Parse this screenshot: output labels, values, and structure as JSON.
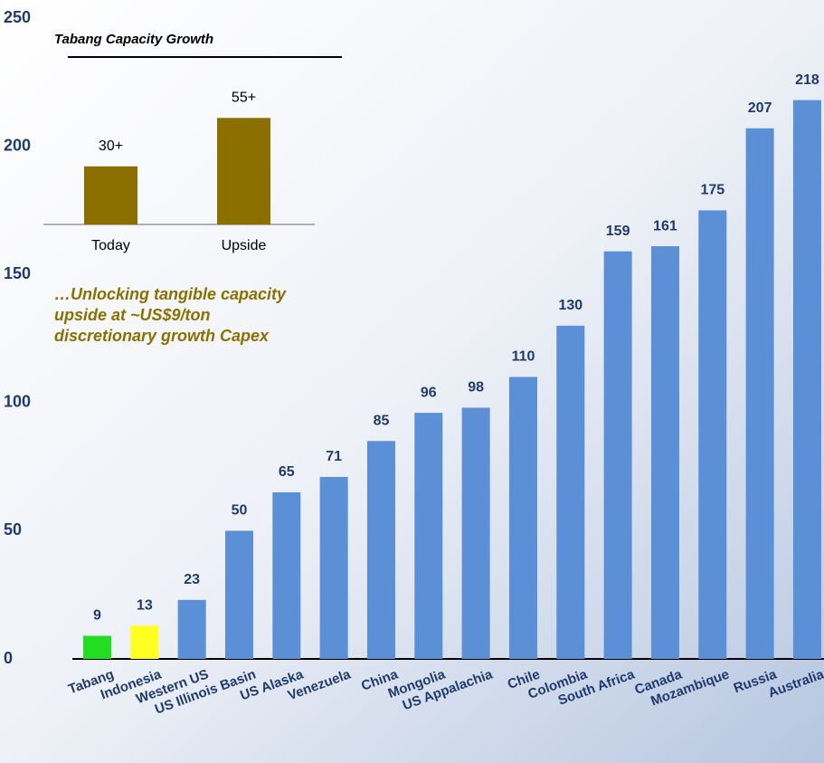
{
  "chart_data": [
    {
      "type": "bar",
      "categories": [
        "Tabang",
        "Indonesia",
        "Western US",
        "US Illinois Basin",
        "US Alaska",
        "Venezuela",
        "China",
        "Mongolia",
        "US Appalachia",
        "Chile",
        "Colombia",
        "South Africa",
        "Canada",
        "Mozambique",
        "Russia",
        "Australia"
      ],
      "values": [
        9,
        13,
        23,
        50,
        65,
        71,
        85,
        96,
        98,
        110,
        130,
        159,
        161,
        175,
        207,
        218
      ],
      "colors": [
        "#22dd22",
        "#ffff22",
        "#5b8fd6",
        "#5b8fd6",
        "#5b8fd6",
        "#5b8fd6",
        "#5b8fd6",
        "#5b8fd6",
        "#5b8fd6",
        "#5b8fd6",
        "#5b8fd6",
        "#5b8fd6",
        "#5b8fd6",
        "#5b8fd6",
        "#5b8fd6",
        "#5b8fd6"
      ],
      "ylim": [
        0,
        250
      ],
      "yticks": [
        0,
        50,
        100,
        150,
        200,
        250
      ],
      "annotation": [
        "…Unlocking tangible capacity",
        "upside at ~US$9/ton",
        "discretionary growth Capex"
      ]
    },
    {
      "type": "bar",
      "title": "Tabang Capacity Growth",
      "categories": [
        "Today",
        "Upside"
      ],
      "values": [
        30,
        55
      ],
      "value_labels": [
        "30+",
        "55+"
      ],
      "color": "#8b7000"
    }
  ]
}
